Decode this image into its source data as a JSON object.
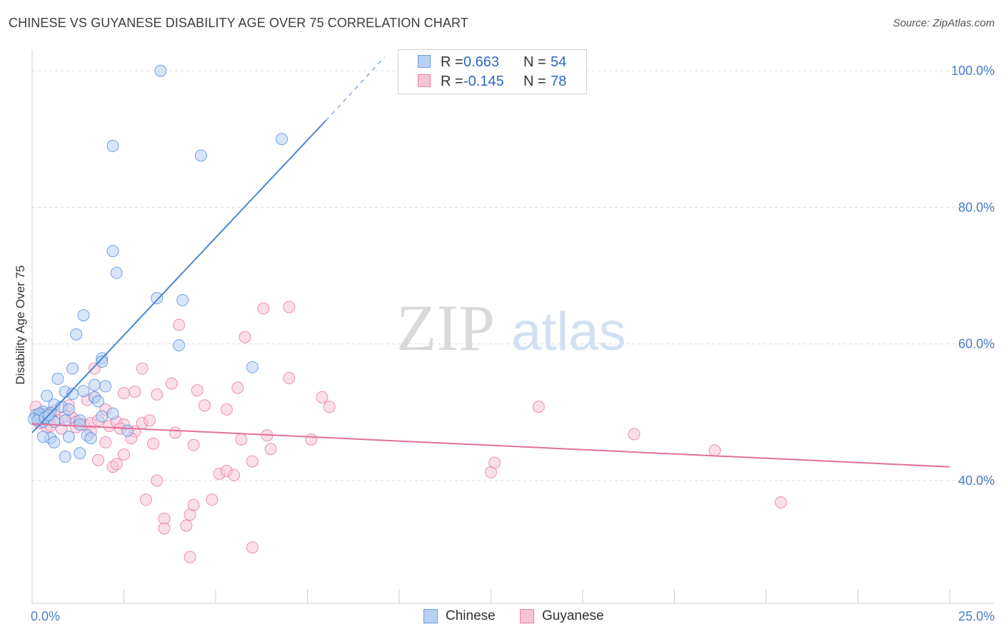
{
  "title": "CHINESE VS GUYANESE DISABILITY AGE OVER 75 CORRELATION CHART",
  "source": "Source: ZipAtlas.com",
  "watermark": {
    "zip": "ZIP",
    "atlas": "atlas"
  },
  "legend": {
    "r_label": "R =",
    "n_label": "N =",
    "items": [
      {
        "name": "Chinese",
        "r": "0.663",
        "n": "54",
        "color": "#6f9be0",
        "fill": "#b8d0f3"
      },
      {
        "name": "Guyanese",
        "r": "-0.145",
        "n": "78",
        "color": "#e57fa3",
        "fill": "#f8c4d5"
      }
    ]
  },
  "chart_data": {
    "type": "scatter",
    "title": "CHINESE VS GUYANESE DISABILITY AGE OVER 75 CORRELATION CHART",
    "xlabel": "",
    "ylabel": "Disability Age Over 75",
    "xlim": [
      0,
      25
    ],
    "ylim": [
      22,
      102
    ],
    "x_tick_labels": [
      "0.0%",
      "25.0%"
    ],
    "y_ticks": [
      40,
      60,
      80,
      100
    ],
    "y_tick_labels": [
      "40.0%",
      "60.0%",
      "80.0%",
      "100.0%"
    ],
    "grid": true,
    "legend_position": "top-center",
    "series": [
      {
        "name": "Chinese",
        "color": "#4a86d8",
        "fill": "#b8d0f3",
        "trend": {
          "x0": 0,
          "y0": 47.0,
          "x1": 8.0,
          "y1": 92.7,
          "dashed_to_x": 9.6,
          "dashed_to_y": 102
        },
        "points": [
          [
            3.5,
            100.0
          ],
          [
            2.2,
            89.0
          ],
          [
            4.6,
            87.6
          ],
          [
            6.8,
            90.0
          ],
          [
            2.2,
            73.6
          ],
          [
            2.3,
            70.4
          ],
          [
            3.4,
            66.7
          ],
          [
            4.1,
            66.4
          ],
          [
            1.4,
            64.2
          ],
          [
            1.2,
            61.4
          ],
          [
            4.0,
            59.8
          ],
          [
            1.9,
            57.9
          ],
          [
            1.9,
            57.4
          ],
          [
            6.0,
            56.6
          ],
          [
            1.1,
            56.4
          ],
          [
            0.7,
            54.9
          ],
          [
            1.7,
            54.0
          ],
          [
            2.0,
            53.8
          ],
          [
            1.4,
            53.1
          ],
          [
            0.9,
            53.0
          ],
          [
            1.1,
            52.7
          ],
          [
            1.7,
            52.2
          ],
          [
            0.4,
            52.4
          ],
          [
            1.8,
            51.6
          ],
          [
            0.6,
            51.1
          ],
          [
            0.8,
            50.8
          ],
          [
            1.0,
            50.4
          ],
          [
            0.3,
            50.1
          ],
          [
            0.5,
            49.9
          ],
          [
            0.2,
            49.6
          ],
          [
            0.4,
            49.4
          ],
          [
            0.1,
            49.6
          ],
          [
            0.2,
            49.2
          ],
          [
            0.3,
            48.6
          ],
          [
            1.3,
            48.8
          ],
          [
            1.9,
            49.4
          ],
          [
            2.2,
            49.8
          ],
          [
            0.6,
            48.6
          ],
          [
            0.9,
            48.8
          ],
          [
            1.3,
            48.2
          ],
          [
            0.5,
            46.2
          ],
          [
            1.0,
            46.4
          ],
          [
            1.5,
            46.6
          ],
          [
            2.6,
            47.3
          ],
          [
            0.3,
            46.4
          ],
          [
            0.6,
            45.6
          ],
          [
            1.6,
            46.2
          ],
          [
            0.9,
            43.5
          ],
          [
            1.3,
            44.0
          ],
          [
            0.2,
            49.8
          ],
          [
            0.05,
            49.0
          ],
          [
            0.15,
            48.8
          ],
          [
            0.35,
            49.2
          ],
          [
            0.45,
            49.6
          ]
        ]
      },
      {
        "name": "Guyanese",
        "color": "#e46f98",
        "fill": "#f8c4d5",
        "trend": {
          "x0": 0,
          "y0": 48.3,
          "x1": 25,
          "y1": 42.0
        },
        "points": [
          [
            0.1,
            50.8
          ],
          [
            0.3,
            49.8
          ],
          [
            0.5,
            49.2
          ],
          [
            0.7,
            48.8
          ],
          [
            0.9,
            49.4
          ],
          [
            1.1,
            49.2
          ],
          [
            1.2,
            48.6
          ],
          [
            1.4,
            48.2
          ],
          [
            1.6,
            48.4
          ],
          [
            1.8,
            48.8
          ],
          [
            2.1,
            48.0
          ],
          [
            2.3,
            48.6
          ],
          [
            2.5,
            48.2
          ],
          [
            2.8,
            47.2
          ],
          [
            3.0,
            48.4
          ],
          [
            3.2,
            48.8
          ],
          [
            0.6,
            50.2
          ],
          [
            1.0,
            51.0
          ],
          [
            1.5,
            51.8
          ],
          [
            1.7,
            52.2
          ],
          [
            2.0,
            50.4
          ],
          [
            2.5,
            52.8
          ],
          [
            2.8,
            53.0
          ],
          [
            3.4,
            52.6
          ],
          [
            1.7,
            56.4
          ],
          [
            3.0,
            56.4
          ],
          [
            3.8,
            54.2
          ],
          [
            4.5,
            53.2
          ],
          [
            4.7,
            51.0
          ],
          [
            5.3,
            50.4
          ],
          [
            5.6,
            53.6
          ],
          [
            7.0,
            55.0
          ],
          [
            5.8,
            61.0
          ],
          [
            6.3,
            65.2
          ],
          [
            7.0,
            65.4
          ],
          [
            4.0,
            62.8
          ],
          [
            7.9,
            52.2
          ],
          [
            8.1,
            50.8
          ],
          [
            13.8,
            50.8
          ],
          [
            3.9,
            47.0
          ],
          [
            4.4,
            45.2
          ],
          [
            5.7,
            46.0
          ],
          [
            6.4,
            46.6
          ],
          [
            6.5,
            44.6
          ],
          [
            7.6,
            46.0
          ],
          [
            3.3,
            45.4
          ],
          [
            2.7,
            46.2
          ],
          [
            2.0,
            45.6
          ],
          [
            1.8,
            43.0
          ],
          [
            2.2,
            42.0
          ],
          [
            2.5,
            43.8
          ],
          [
            2.3,
            42.4
          ],
          [
            3.4,
            40.0
          ],
          [
            5.1,
            41.0
          ],
          [
            5.3,
            41.4
          ],
          [
            5.5,
            40.8
          ],
          [
            6.0,
            42.8
          ],
          [
            3.1,
            37.2
          ],
          [
            3.6,
            34.4
          ],
          [
            4.4,
            36.4
          ],
          [
            4.3,
            35.0
          ],
          [
            3.6,
            33.0
          ],
          [
            4.2,
            33.4
          ],
          [
            4.3,
            28.8
          ],
          [
            6.0,
            30.2
          ],
          [
            4.9,
            37.2
          ],
          [
            12.5,
            41.2
          ],
          [
            12.6,
            42.6
          ],
          [
            16.4,
            46.8
          ],
          [
            18.6,
            44.4
          ],
          [
            20.4,
            36.8
          ],
          [
            0.4,
            47.8
          ],
          [
            0.8,
            47.6
          ],
          [
            1.6,
            47.2
          ],
          [
            2.4,
            47.6
          ],
          [
            1.2,
            47.8
          ],
          [
            0.2,
            48.4
          ],
          [
            0.5,
            48.0
          ]
        ]
      }
    ]
  }
}
